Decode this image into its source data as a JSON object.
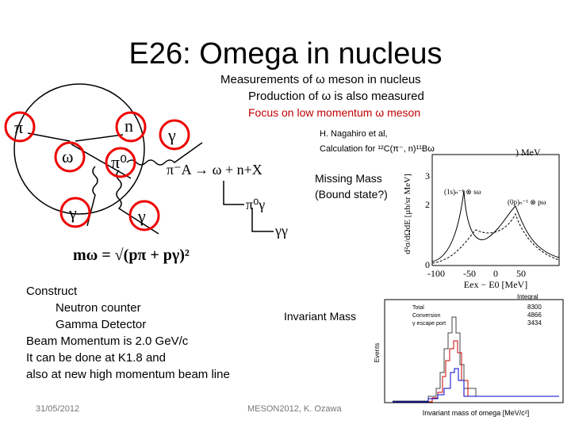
{
  "header": {
    "title": "E26: Omega in nucleus",
    "lines": [
      "Measurements of ω meson in nucleus",
      "Production of ω is also measured",
      "Focus on  low momentum ω meson"
    ]
  },
  "reference": {
    "author": "H. Nagahiro et al,",
    "calc": "Calculation for ¹²C(π⁻, n)¹¹Bω"
  },
  "diagram": {
    "labels": [
      "π",
      "n",
      "γ",
      "ω",
      "π⁰",
      "γ",
      "γ"
    ],
    "reaction": "π⁻A → ω + n+X",
    "decay1": "π⁰γ",
    "decay2": "γγ",
    "formula": "mω = √(pπ + pγ)²"
  },
  "missing_mass": [
    "Missing Mass",
    "(Bound state?)"
  ],
  "invariant_mass": "Invariant Mass",
  "construct": [
    "Construct",
    "Neutron counter",
    "Gamma Detector",
    "Beam Momentum is 2.0 GeV/c",
    "It can be done at K1.8 and",
    "also at new high momentum beam line"
  ],
  "plot1": {
    "ylabel": "d²σ/dΩdE [μb/sr MeV]",
    "xlabel": "Eex − E0 [MeV]",
    "unit": ") MeV",
    "yticks": [
      "3",
      "2",
      "0"
    ],
    "xticks": [
      "-100",
      "-50",
      "0",
      "50"
    ],
    "notes": [
      "(1s)ₙ⁻¹ ⊗ sω",
      "(0p)ₙ⁻¹ ⊗ pω"
    ]
  },
  "plot2": {
    "ylabel": "Events",
    "xlabel": "Invariant mass of omega [MeV/c²]",
    "legend": [
      "Total",
      "Conversion",
      "γ escape port"
    ],
    "integral_title": "Integral",
    "integrals": [
      "8300",
      "4866",
      "3434"
    ]
  },
  "footer": {
    "date": "31/05/2012",
    "center": "MESON2012, K. Ozawa"
  }
}
